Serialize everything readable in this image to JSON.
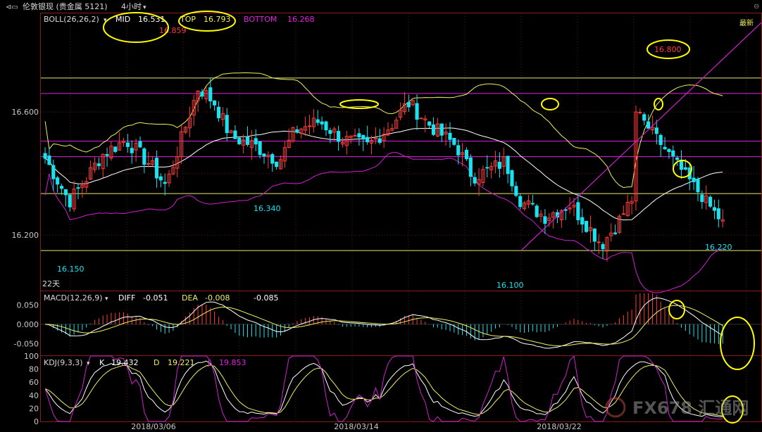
{
  "header": {
    "title": "伦敦银现 (贵金属 5121)",
    "period": "4小时",
    "corner": "最新"
  },
  "colors": {
    "background": "#000000",
    "up": "#ff3b3b",
    "down": "#19e3f0",
    "mid_line": "#ffffff",
    "top_line": "#f0f060",
    "bottom_line": "#d020d0",
    "magenta_level": "#e020e0",
    "yellow_level": "#e8e870",
    "annotation": "#ffff00",
    "axis_text": "#c8c8c8",
    "panel_border": "#8b1a1a"
  },
  "chart_data": [
    {
      "type": "candlestick",
      "title": "BOLL(26,26,2)",
      "legend": [
        {
          "name": "MID",
          "value": "16.531",
          "color": "#ffffff"
        },
        {
          "name": "TOP",
          "value": "16.793",
          "color": "#f0f060"
        },
        {
          "name": "BOTTOM",
          "value": "16.268",
          "color": "#d020d0"
        }
      ],
      "ylim": [
        16.02,
        16.92
      ],
      "y_ticks": [
        "16.600",
        "16.200"
      ],
      "y_tick_values": [
        16.6,
        16.2
      ],
      "x_tick_labels": [
        "2018/03/06",
        "2018/03/14",
        "2018/03/22"
      ],
      "horizontal_levels": [
        {
          "value": 16.71,
          "color": "yellow"
        },
        {
          "value": 16.66,
          "color": "magenta"
        },
        {
          "value": 16.505,
          "color": "magenta"
        },
        {
          "value": 16.455,
          "color": "magenta"
        },
        {
          "value": 16.335,
          "color": "yellow"
        },
        {
          "value": 16.15,
          "color": "yellow"
        }
      ],
      "price_labels": [
        {
          "text": "16.859",
          "value": 16.859,
          "color": "up"
        },
        {
          "text": "16.800",
          "value": 16.8,
          "color": "up"
        },
        {
          "text": "16.340",
          "value": 16.34,
          "color": "down"
        },
        {
          "text": "16.150",
          "value": 16.15,
          "color": "down"
        },
        {
          "text": "16.100",
          "value": 16.1,
          "color": "down"
        },
        {
          "text": "16.220",
          "value": 16.22,
          "color": "down"
        }
      ],
      "footer_label": "22天",
      "trendline": {
        "from": [
          16.15,
          0.69
        ],
        "to": [
          16.89,
          1.0
        ]
      }
    },
    {
      "type": "macd",
      "title": "MACD(12,26,9)",
      "legend": [
        {
          "name": "DIFF",
          "value": "-0.051",
          "color": "#ffffff"
        },
        {
          "name": "DEA",
          "value": "-0.008",
          "color": "#f0f060"
        },
        {
          "name": "",
          "value": "-0.085",
          "color": "#ffffff"
        }
      ],
      "ylim": [
        -0.08,
        0.085
      ],
      "y_ticks": [
        "0.050",
        "0.000",
        "-0.050"
      ],
      "y_tick_values": [
        0.05,
        0.0,
        -0.05
      ]
    },
    {
      "type": "kdj",
      "title": "KDJ(9,3,3)",
      "legend": [
        {
          "name": "K",
          "value": "19.432",
          "color": "#ffffff"
        },
        {
          "name": "D",
          "value": "19.221",
          "color": "#f0f060"
        },
        {
          "name": "J",
          "value": "19.853",
          "color": "#d020d0"
        }
      ],
      "ylim": [
        0,
        100
      ],
      "y_ticks": [
        "100",
        "80",
        "60",
        "40",
        "20",
        "0"
      ],
      "y_tick_values": [
        100,
        80,
        60,
        40,
        20,
        0
      ]
    }
  ],
  "watermark": "FX678 汇通网"
}
